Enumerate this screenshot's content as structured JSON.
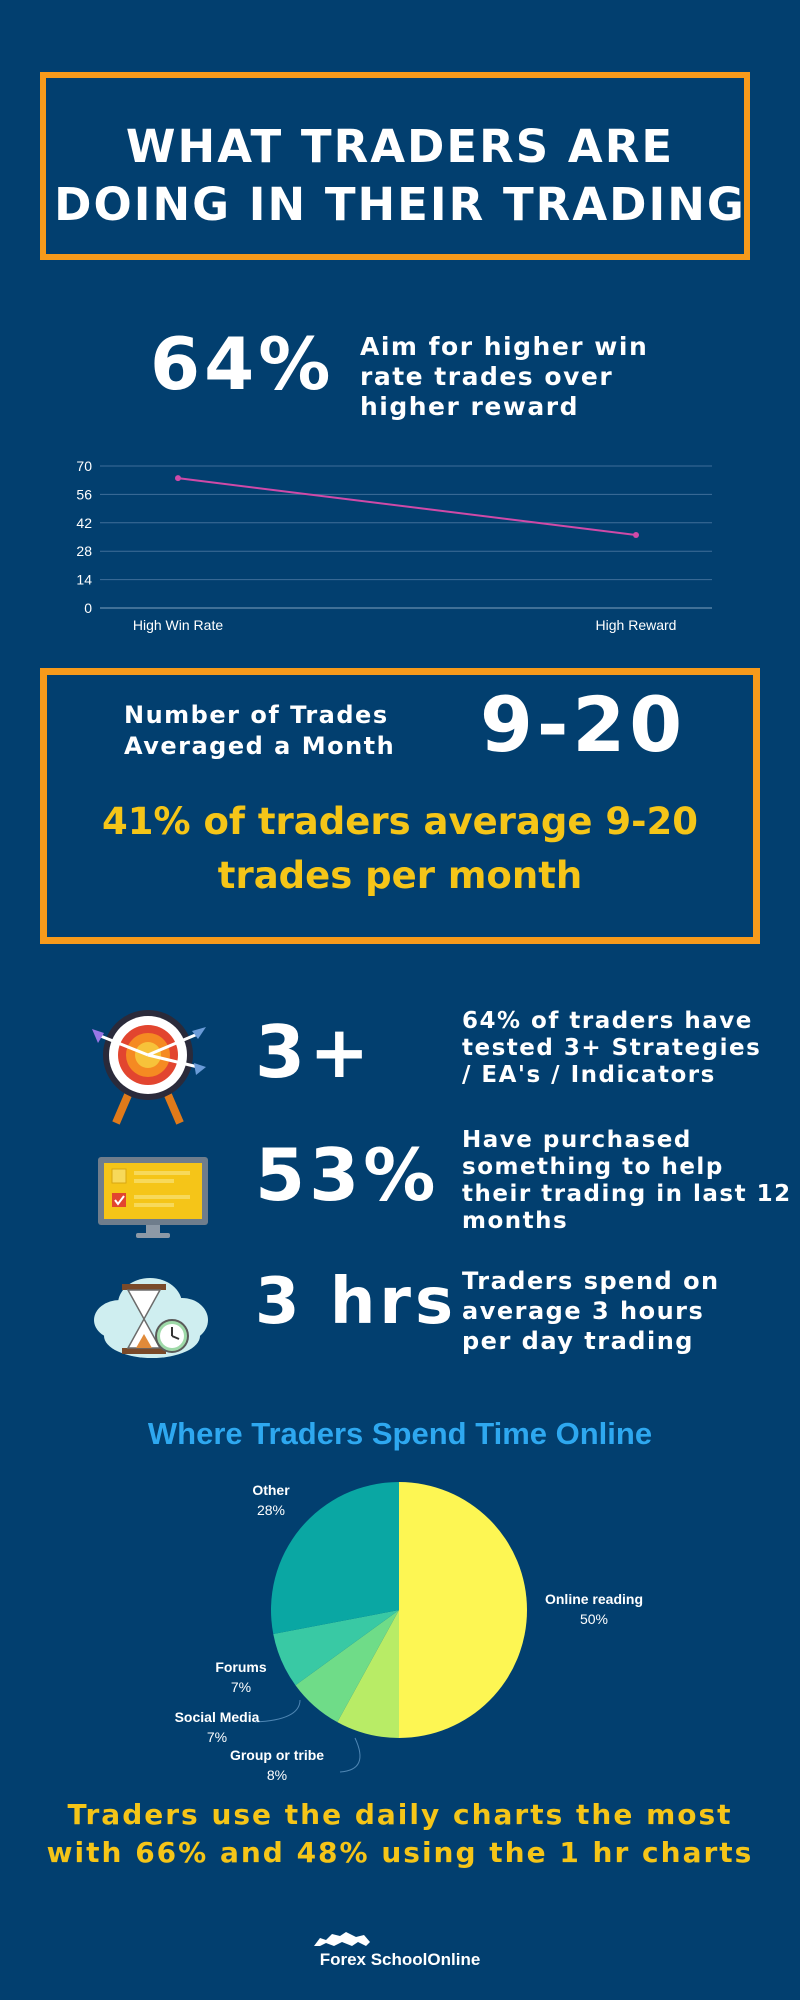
{
  "title": {
    "line1": "WHAT TRADERS ARE",
    "line2": "DOING IN THEIR TRADING"
  },
  "win_rate": {
    "stat": "64%",
    "line1": "Aim for higher win",
    "line2": "rate trades over",
    "line3": "higher reward"
  },
  "trades": {
    "label_line1": "Number of Trades",
    "label_line2": "Averaged a Month",
    "stat": "9-20",
    "detail_line1": "41% of traders average 9-20",
    "detail_line2": "trades per month"
  },
  "facts": [
    {
      "icon": "target-icon",
      "stat": "3+",
      "line1": "64% of traders have",
      "line2": "tested 3+ Strategies",
      "line3": "/ EA's / Indicators",
      "line4": ""
    },
    {
      "icon": "monitor-icon",
      "stat": "53%",
      "line1": "Have purchased",
      "line2": "something to help",
      "line3": "their trading in last 12",
      "line4": "months"
    },
    {
      "icon": "hourglass-icon",
      "stat": "3 hrs",
      "line1": "Traders spend on",
      "line2": "average 3 hours",
      "line3": "per day trading",
      "line4": ""
    }
  ],
  "pie_section": {
    "title": "Where Traders Spend Time Online"
  },
  "footer": {
    "line1": "Traders use the daily charts the most",
    "line2": "with 66% and 48% using the 1 hr charts"
  },
  "brand": {
    "name": "Forex SchoolOnline"
  },
  "colors": {
    "background": "#023f6f",
    "accent_orange": "#f79a1b",
    "accent_yellow": "#f5c518",
    "line_series": "#d04aa8",
    "pie_title": "#2ea8f0"
  },
  "chart_data": [
    {
      "type": "line",
      "categories": [
        "High Win Rate",
        "High Reward"
      ],
      "series": [
        {
          "values": [
            64,
            36
          ]
        }
      ],
      "y_ticks": [
        "0",
        "14",
        "28",
        "42",
        "56",
        "70"
      ],
      "ylim": [
        0,
        70
      ],
      "grid": true,
      "legend": "none"
    },
    {
      "type": "pie",
      "slices": [
        {
          "label": "Online reading",
          "value_label": "50%",
          "value": 50,
          "color": "#fdf653"
        },
        {
          "label": "Group or tribe",
          "value_label": "8%",
          "value": 8,
          "color": "#b8ec66"
        },
        {
          "label": "Social Media",
          "value_label": "7%",
          "value": 7,
          "color": "#6fdc88"
        },
        {
          "label": "Forums",
          "value_label": "7%",
          "value": 7,
          "color": "#39c9a4"
        },
        {
          "label": "Other",
          "value_label": "28%",
          "value": 28,
          "color": "#0aa7a3"
        }
      ]
    }
  ]
}
